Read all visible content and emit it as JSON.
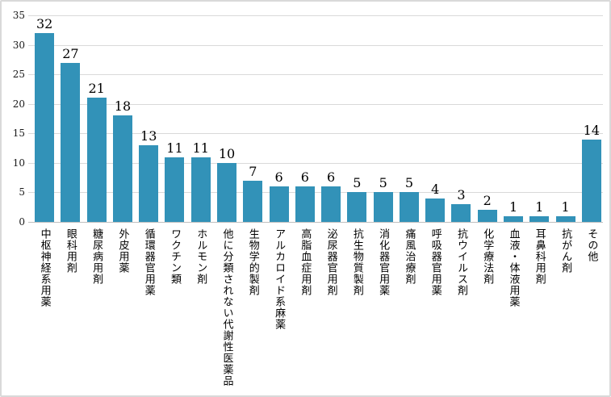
{
  "page": {
    "background": "#ffffff",
    "border_color": "#d9d9d9"
  },
  "chart_data": {
    "type": "bar",
    "title": "",
    "categories": [
      "中枢神経系用薬",
      "眼科用剤",
      "糖尿病用剤",
      "外皮用薬",
      "循環器官用薬",
      "ワクチン類",
      "ホルモン剤",
      "他に分類されない代謝性医薬品",
      "生物学的製剤",
      "アルカロイド系麻薬",
      "高脂血症用剤",
      "泌尿器官用剤",
      "抗生物質製剤",
      "消化器官用薬",
      "痛風治療剤",
      "呼吸器官用薬",
      "抗ウイルス剤",
      "化学療法剤",
      "血液・体液用薬",
      "耳鼻科用剤",
      "抗がん剤",
      "その他"
    ],
    "values": [
      32,
      27,
      21,
      18,
      13,
      11,
      11,
      10,
      7,
      6,
      6,
      6,
      5,
      5,
      5,
      4,
      3,
      2,
      1,
      1,
      1,
      14
    ],
    "xlabel": "",
    "ylabel": "",
    "ylim": [
      0,
      35
    ],
    "yticks": [
      0,
      5,
      10,
      15,
      20,
      25,
      30,
      35
    ],
    "grid": true,
    "legend": "none",
    "data_labels": true,
    "x_label_orientation": "vertical",
    "bar_color": "#3292b8",
    "gridline_color": "#d9d9d9",
    "axis_line_color": "#bfbfbf",
    "label_color": "#000000"
  }
}
